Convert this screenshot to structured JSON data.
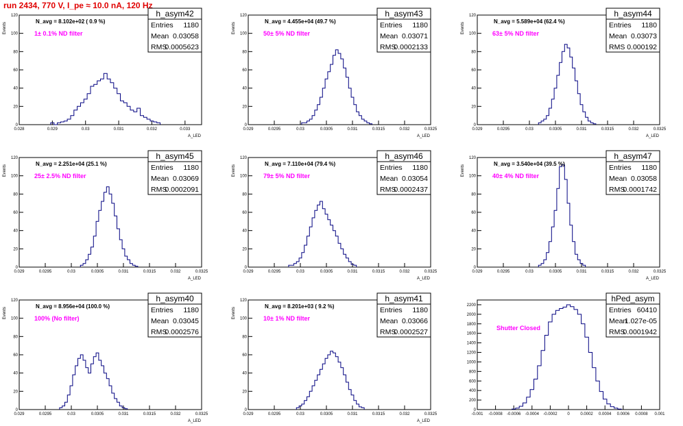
{
  "title": "run 2434,   770 V, I_pe ≈ 10.0 nA, 120 Hz",
  "chart_data": [
    {
      "type": "bar",
      "hist": "h_asym42",
      "navg": "N_avg = 8.102e+02 ( 0.9 %)",
      "filter": "1± 0.1% ND filter",
      "ylabel": "Events",
      "xlabel": "A_LED",
      "stats": {
        "entries": "1180",
        "mean": "0.03058",
        "rms": "0.0005623"
      },
      "xlim": [
        0.028,
        0.0335
      ],
      "ylim": [
        0,
        120
      ],
      "xticks": [
        0.028,
        0.029,
        0.03,
        0.031,
        0.032,
        0.033
      ],
      "xtick_labels": [
        "0.028",
        "0.029",
        "0.03",
        "0.031",
        "0.032",
        "0.033"
      ],
      "yticks": [
        0,
        20,
        40,
        60,
        80,
        100,
        120
      ],
      "ytick_labels": [
        "0",
        "20",
        "40",
        "60",
        "80",
        "100",
        "120"
      ],
      "x": [
        0.029,
        0.0291,
        0.0292,
        0.0293,
        0.0294,
        0.0295,
        0.0296,
        0.0297,
        0.0298,
        0.0299,
        0.03,
        0.0301,
        0.0302,
        0.0303,
        0.0304,
        0.0305,
        0.0306,
        0.0307,
        0.0308,
        0.0309,
        0.031,
        0.0311,
        0.0312,
        0.0313,
        0.0314,
        0.0315,
        0.0316,
        0.0317,
        0.0318,
        0.0319,
        0.032,
        0.0321,
        0.0322
      ],
      "values": [
        2,
        0,
        2,
        3,
        4,
        6,
        10,
        16,
        20,
        24,
        28,
        34,
        42,
        44,
        48,
        50,
        56,
        50,
        46,
        40,
        34,
        26,
        24,
        20,
        16,
        14,
        18,
        10,
        8,
        6,
        4,
        3,
        2
      ]
    },
    {
      "type": "bar",
      "hist": "h_asym43",
      "navg": "N_avg = 4.455e+04 (49.7 %)",
      "filter": "50± 5% ND filter",
      "ylabel": "Events",
      "xlabel": "A_LED",
      "stats": {
        "entries": "1180",
        "mean": "0.03071",
        "rms": "0.0002133"
      },
      "xlim": [
        0.029,
        0.0325
      ],
      "ylim": [
        0,
        120
      ],
      "xticks": [
        0.029,
        0.0295,
        0.03,
        0.0305,
        0.031,
        0.0315,
        0.032,
        0.0325
      ],
      "xtick_labels": [
        "0.029",
        "0.0295",
        "0.03",
        "0.0305",
        "0.031",
        "0.0315",
        "0.032",
        "0.0325"
      ],
      "yticks": [
        0,
        20,
        40,
        60,
        80,
        100,
        120
      ],
      "ytick_labels": [
        "0",
        "20",
        "40",
        "60",
        "80",
        "100",
        "120"
      ],
      "x": [
        0.03005,
        0.0301,
        0.03015,
        0.0302,
        0.03025,
        0.0303,
        0.03035,
        0.0304,
        0.03045,
        0.0305,
        0.03055,
        0.0306,
        0.03065,
        0.0307,
        0.03075,
        0.0308,
        0.03085,
        0.0309,
        0.03095,
        0.031,
        0.03105,
        0.0311,
        0.03115,
        0.0312,
        0.03125,
        0.0313,
        0.03135
      ],
      "values": [
        2,
        2,
        4,
        6,
        10,
        16,
        22,
        30,
        40,
        50,
        58,
        66,
        76,
        82,
        78,
        72,
        62,
        52,
        40,
        30,
        22,
        14,
        10,
        6,
        4,
        2,
        1
      ]
    },
    {
      "type": "bar",
      "hist": "h_asym44",
      "navg": "N_avg = 5.589e+04 (62.4 %)",
      "filter": "63± 5% ND filter",
      "ylabel": "Events",
      "xlabel": "A_LED",
      "stats": {
        "entries": "1180",
        "mean": "0.03073",
        "rms": "0.000192"
      },
      "xlim": [
        0.029,
        0.0325
      ],
      "ylim": [
        0,
        120
      ],
      "xticks": [
        0.029,
        0.0295,
        0.03,
        0.0305,
        0.031,
        0.0315,
        0.032,
        0.0325
      ],
      "xtick_labels": [
        "0.029",
        "0.0295",
        "0.03",
        "0.0305",
        "0.031",
        "0.0315",
        "0.032",
        "0.0325"
      ],
      "yticks": [
        0,
        20,
        40,
        60,
        80,
        100,
        120
      ],
      "ytick_labels": [
        "0",
        "20",
        "40",
        "60",
        "80",
        "100",
        "120"
      ],
      "x": [
        0.0302,
        0.03025,
        0.0303,
        0.03035,
        0.0304,
        0.03045,
        0.0305,
        0.03055,
        0.0306,
        0.03065,
        0.0307,
        0.03075,
        0.0308,
        0.03085,
        0.0309,
        0.03095,
        0.031,
        0.03105,
        0.0311,
        0.03115,
        0.0312,
        0.03125
      ],
      "values": [
        2,
        4,
        6,
        10,
        18,
        28,
        40,
        54,
        68,
        80,
        88,
        84,
        74,
        62,
        48,
        34,
        22,
        14,
        8,
        4,
        2,
        1
      ]
    },
    {
      "type": "bar",
      "hist": "h_asym45",
      "navg": "N_avg = 2.251e+04 (25.1 %)",
      "filter": "25± 2.5% ND filter",
      "ylabel": "Events",
      "xlabel": "A_LED",
      "stats": {
        "entries": "1180",
        "mean": "0.03069",
        "rms": "0.0002091"
      },
      "xlim": [
        0.029,
        0.0325
      ],
      "ylim": [
        0,
        120
      ],
      "xticks": [
        0.029,
        0.0295,
        0.03,
        0.0305,
        0.031,
        0.0315,
        0.032,
        0.0325
      ],
      "xtick_labels": [
        "0.029",
        "0.0295",
        "0.03",
        "0.0305",
        "0.031",
        "0.0315",
        "0.032",
        "0.0325"
      ],
      "yticks": [
        0,
        20,
        40,
        60,
        80,
        100,
        120
      ],
      "ytick_labels": [
        "0",
        "20",
        "40",
        "60",
        "80",
        "100",
        "120"
      ],
      "x": [
        0.0302,
        0.03025,
        0.0303,
        0.03035,
        0.0304,
        0.03045,
        0.0305,
        0.03055,
        0.0306,
        0.03065,
        0.0307,
        0.03075,
        0.0308,
        0.03085,
        0.0309,
        0.03095,
        0.031,
        0.03105,
        0.0311,
        0.03115,
        0.0312,
        0.03125
      ],
      "values": [
        2,
        4,
        8,
        14,
        22,
        34,
        50,
        62,
        72,
        82,
        88,
        80,
        70,
        56,
        42,
        30,
        20,
        12,
        8,
        4,
        2,
        1
      ]
    },
    {
      "type": "bar",
      "hist": "h_asym46",
      "navg": "N_avg = 7.110e+04 (79.4 %)",
      "filter": "79± 5% ND filter",
      "ylabel": "Events",
      "xlabel": "A_LED",
      "stats": {
        "entries": "1180",
        "mean": "0.03054",
        "rms": "0.0002437"
      },
      "xlim": [
        0.029,
        0.0325
      ],
      "ylim": [
        0,
        120
      ],
      "xticks": [
        0.029,
        0.0295,
        0.03,
        0.0305,
        0.031,
        0.0315,
        0.032,
        0.0325
      ],
      "xtick_labels": [
        "0.029",
        "0.0295",
        "0.03",
        "0.0305",
        "0.031",
        "0.0315",
        "0.032",
        "0.0325"
      ],
      "yticks": [
        0,
        20,
        40,
        60,
        80,
        100,
        120
      ],
      "ytick_labels": [
        "0",
        "20",
        "40",
        "60",
        "80",
        "100",
        "120"
      ],
      "x": [
        0.0298,
        0.02985,
        0.0299,
        0.02995,
        0.03,
        0.03005,
        0.0301,
        0.03015,
        0.0302,
        0.03025,
        0.0303,
        0.03035,
        0.0304,
        0.03045,
        0.0305,
        0.03055,
        0.0306,
        0.03065,
        0.0307,
        0.03075,
        0.0308,
        0.03085,
        0.0309,
        0.03095,
        0.031,
        0.03105
      ],
      "values": [
        2,
        2,
        4,
        6,
        10,
        16,
        24,
        34,
        44,
        54,
        62,
        68,
        72,
        64,
        58,
        52,
        46,
        40,
        34,
        26,
        20,
        14,
        10,
        6,
        3,
        2
      ]
    },
    {
      "type": "bar",
      "hist": "h_asym47",
      "navg": "N_avg = 3.540e+04 (39.5 %)",
      "filter": "40± 4% ND filter",
      "ylabel": "Events",
      "xlabel": "A_LED",
      "stats": {
        "entries": "1180",
        "mean": "0.03058",
        "rms": "0.0001742"
      },
      "xlim": [
        0.029,
        0.0325
      ],
      "ylim": [
        0,
        120
      ],
      "xticks": [
        0.029,
        0.0295,
        0.03,
        0.0305,
        0.031,
        0.0315,
        0.032,
        0.0325
      ],
      "xtick_labels": [
        "0.029",
        "0.0295",
        "0.03",
        "0.0305",
        "0.031",
        "0.0315",
        "0.032",
        "0.0325"
      ],
      "yticks": [
        0,
        20,
        40,
        60,
        80,
        100,
        120
      ],
      "ytick_labels": [
        "0",
        "20",
        "40",
        "60",
        "80",
        "100",
        "120"
      ],
      "x": [
        0.0302,
        0.03025,
        0.0303,
        0.03035,
        0.0304,
        0.03045,
        0.0305,
        0.03055,
        0.0306,
        0.03065,
        0.0307,
        0.03075,
        0.0308,
        0.03085,
        0.0309,
        0.03095,
        0.031,
        0.03105
      ],
      "values": [
        2,
        4,
        8,
        16,
        28,
        44,
        62,
        86,
        110,
        112,
        96,
        70,
        46,
        28,
        14,
        8,
        4,
        2
      ]
    },
    {
      "type": "bar",
      "hist": "h_asym40",
      "navg": "N_avg = 8.956e+04 (100.0 %)",
      "filter": "100% (No filter)",
      "ylabel": "Events",
      "xlabel": "A_LED",
      "stats": {
        "entries": "1180",
        "mean": "0.03045",
        "rms": "0.0002576"
      },
      "xlim": [
        0.029,
        0.0325
      ],
      "ylim": [
        0,
        120
      ],
      "xticks": [
        0.029,
        0.0295,
        0.03,
        0.0305,
        0.031,
        0.0315,
        0.032,
        0.0325
      ],
      "xtick_labels": [
        "0.029",
        "0.0295",
        "0.03",
        "0.0305",
        "0.031",
        "0.0315",
        "0.032",
        "0.0325"
      ],
      "yticks": [
        0,
        20,
        40,
        60,
        80,
        100,
        120
      ],
      "ytick_labels": [
        "0",
        "20",
        "40",
        "60",
        "80",
        "100",
        "120"
      ],
      "x": [
        0.0298,
        0.02985,
        0.0299,
        0.02995,
        0.03,
        0.03005,
        0.0301,
        0.03015,
        0.0302,
        0.03025,
        0.0303,
        0.03035,
        0.0304,
        0.03045,
        0.0305,
        0.03055,
        0.0306,
        0.03065,
        0.0307,
        0.03075,
        0.0308,
        0.03085,
        0.0309,
        0.03095,
        0.031,
        0.03105
      ],
      "values": [
        2,
        4,
        8,
        16,
        26,
        38,
        48,
        56,
        60,
        54,
        46,
        40,
        50,
        58,
        62,
        54,
        48,
        40,
        34,
        26,
        18,
        12,
        8,
        4,
        2,
        1
      ]
    },
    {
      "type": "bar",
      "hist": "h_asym41",
      "navg": "N_avg = 8.201e+03 ( 9.2 %)",
      "filter": "10± 1% ND filter",
      "ylabel": "Events",
      "xlabel": "A_LED",
      "stats": {
        "entries": "1180",
        "mean": "0.03066",
        "rms": "0.0002527"
      },
      "xlim": [
        0.029,
        0.0325
      ],
      "ylim": [
        0,
        120
      ],
      "xticks": [
        0.029,
        0.0295,
        0.03,
        0.0305,
        0.031,
        0.0315,
        0.032,
        0.0325
      ],
      "xtick_labels": [
        "0.029",
        "0.0295",
        "0.03",
        "0.0305",
        "0.031",
        "0.0315",
        "0.032",
        "0.0325"
      ],
      "yticks": [
        0,
        20,
        40,
        60,
        80,
        100,
        120
      ],
      "ytick_labels": [
        "0",
        "20",
        "40",
        "60",
        "80",
        "100",
        "120"
      ],
      "x": [
        0.02995,
        0.03,
        0.03005,
        0.0301,
        0.03015,
        0.0302,
        0.03025,
        0.0303,
        0.03035,
        0.0304,
        0.03045,
        0.0305,
        0.03055,
        0.0306,
        0.03065,
        0.0307,
        0.03075,
        0.0308,
        0.03085,
        0.0309,
        0.03095,
        0.031,
        0.03105,
        0.0311,
        0.03115,
        0.0312
      ],
      "values": [
        2,
        4,
        6,
        10,
        14,
        20,
        26,
        32,
        38,
        44,
        50,
        56,
        60,
        64,
        62,
        58,
        52,
        46,
        38,
        30,
        22,
        16,
        10,
        6,
        3,
        2
      ]
    },
    {
      "type": "bar",
      "hist": "hPed_asym",
      "navg": "",
      "filter": "Shutter Closed",
      "ylabel": "",
      "xlabel": "",
      "stats": {
        "entries": "60410",
        "mean": "1.027e-05",
        "rms": "0.0001942"
      },
      "xlim": [
        -0.001,
        0.001
      ],
      "ylim": [
        0,
        2300
      ],
      "xticks": [
        -0.001,
        -0.0008,
        -0.0006,
        -0.0004,
        -0.0002,
        0,
        0.0002,
        0.0004,
        0.0006,
        0.0008,
        0.001
      ],
      "xtick_labels": [
        "-0.001",
        "-0.0008",
        "-0.0006",
        "-0.0004",
        "-0.0002",
        "0",
        "0.0002",
        "0.0004",
        "0.0006",
        "0.0008",
        "0.001"
      ],
      "yticks": [
        0,
        200,
        400,
        600,
        800,
        1000,
        1200,
        1400,
        1600,
        1800,
        2000,
        2200
      ],
      "ytick_labels": [
        "0",
        "200",
        "400",
        "600",
        "800",
        "1000",
        "1200",
        "1400",
        "1600",
        "1800",
        "2000",
        "2200"
      ],
      "x": [
        -0.0006,
        -0.00056,
        -0.00052,
        -0.00048,
        -0.00044,
        -0.0004,
        -0.00036,
        -0.00032,
        -0.00028,
        -0.00024,
        -0.0002,
        -0.00016,
        -0.00012,
        -8e-05,
        -4e-05,
        0,
        4e-05,
        8e-05,
        0.00012,
        0.00016,
        0.0002,
        0.00024,
        0.00028,
        0.00032,
        0.00036,
        0.0004,
        0.00044,
        0.00048,
        0.00052,
        0.00056
      ],
      "values": [
        10,
        30,
        70,
        140,
        260,
        420,
        640,
        920,
        1240,
        1560,
        1840,
        2000,
        2080,
        2120,
        2150,
        2200,
        2160,
        2100,
        2000,
        1800,
        1520,
        1200,
        880,
        600,
        380,
        220,
        120,
        60,
        30,
        10
      ]
    }
  ]
}
